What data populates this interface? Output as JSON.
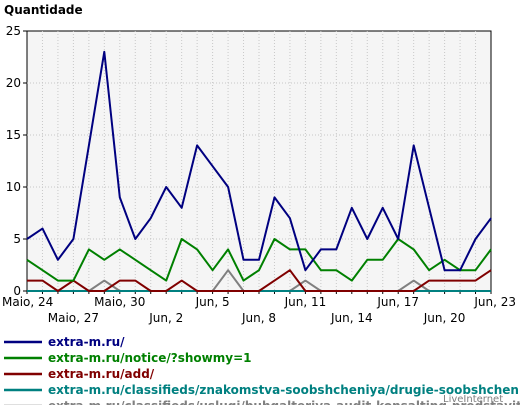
{
  "chart_data": {
    "type": "line",
    "ylabel": "Quantidade",
    "ylim": [
      0,
      25
    ],
    "yticks": [
      0,
      5,
      10,
      15,
      20,
      25
    ],
    "x": [
      "Maio, 24",
      "Maio, 25",
      "Maio, 26",
      "Maio, 27",
      "Maio, 28",
      "Maio, 29",
      "Maio, 30",
      "Maio, 31",
      "Jun, 1",
      "Jun, 2",
      "Jun, 3",
      "Jun, 4",
      "Jun, 5",
      "Jun, 6",
      "Jun, 7",
      "Jun, 8",
      "Jun, 9",
      "Jun, 10",
      "Jun, 11",
      "Jun, 12",
      "Jun, 13",
      "Jun, 14",
      "Jun, 15",
      "Jun, 16",
      "Jun, 17",
      "Jun, 18",
      "Jun, 19",
      "Jun, 20",
      "Jun, 21",
      "Jun, 22",
      "Jun, 23"
    ],
    "xtick_labels": [
      {
        "label": "Maio, 24",
        "row": 1
      },
      {
        "label": "Maio, 27",
        "row": 2
      },
      {
        "label": "Maio, 30",
        "row": 1
      },
      {
        "label": "Jun, 2",
        "row": 2
      },
      {
        "label": "Jun, 5",
        "row": 1
      },
      {
        "label": "Jun, 8",
        "row": 2
      },
      {
        "label": "Jun, 11",
        "row": 1
      },
      {
        "label": "Jun, 14",
        "row": 2
      },
      {
        "label": "Jun, 17",
        "row": 1
      },
      {
        "label": "Jun, 20",
        "row": 2
      },
      {
        "label": "Jun, 23",
        "row": 1
      }
    ],
    "grid": true,
    "legend_placement": "bottom",
    "series": [
      {
        "name": "extra-m.ru/",
        "color": "#000080",
        "values": [
          5,
          6,
          3,
          5,
          14,
          23,
          9,
          5,
          7,
          10,
          8,
          14,
          12,
          10,
          3,
          3,
          9,
          7,
          2,
          4,
          4,
          8,
          5,
          8,
          5,
          14,
          8,
          2,
          2,
          5,
          7
        ]
      },
      {
        "name": "extra-m.ru/notice/?showmy=1",
        "color": "#008000",
        "values": [
          3,
          2,
          1,
          1,
          4,
          3,
          4,
          3,
          2,
          1,
          5,
          4,
          2,
          4,
          1,
          2,
          5,
          4,
          4,
          2,
          2,
          1,
          3,
          3,
          5,
          4,
          2,
          3,
          2,
          2,
          4
        ]
      },
      {
        "name": "extra-m.ru/add/",
        "color": "#800000",
        "values": [
          1,
          1,
          0,
          1,
          0,
          0,
          1,
          1,
          0,
          0,
          1,
          0,
          0,
          0,
          0,
          0,
          1,
          2,
          0,
          0,
          0,
          0,
          0,
          0,
          0,
          0,
          1,
          1,
          1,
          1,
          2
        ]
      },
      {
        "name": "extra-m.ru/classifieds/znakomstva-soobshcheniya/drugie-soobshcheniya/",
        "color": "#008080",
        "values": [
          0,
          0,
          0,
          0,
          0,
          0,
          0,
          0,
          0,
          0,
          0,
          0,
          0,
          0,
          0,
          0,
          0,
          0,
          0,
          0,
          0,
          0,
          0,
          0,
          0,
          0,
          0,
          0,
          0,
          0,
          0
        ]
      },
      {
        "name": "extra-m.ru/classifieds/uslugi/buhgalteriya-audit-konsalting-predstavitel/",
        "color": "#808080",
        "values": [
          0,
          0,
          0,
          0,
          0,
          1,
          0,
          0,
          0,
          0,
          0,
          0,
          0,
          2,
          0,
          0,
          0,
          0,
          1,
          0,
          0,
          0,
          0,
          0,
          0,
          1,
          0,
          0,
          0,
          0,
          0
        ]
      }
    ],
    "credit": "LiveInternet"
  }
}
